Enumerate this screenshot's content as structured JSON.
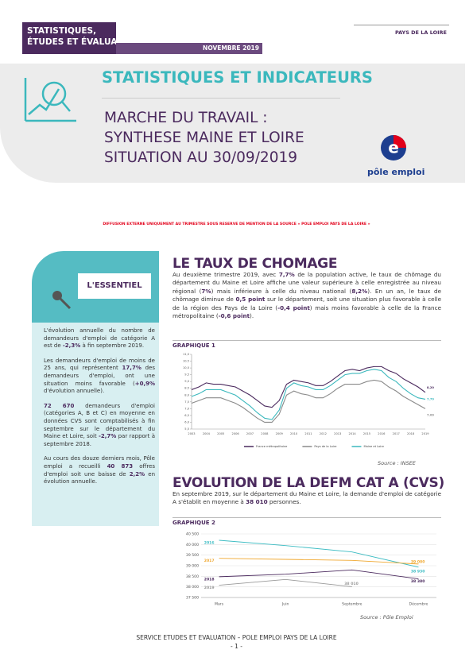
{
  "header": {
    "brand_line1": "STATISTIQUES,",
    "brand_line2": "ÉTUDES ET ÉVALUATIONS",
    "date": "NOVEMBRE 2019",
    "region": "PAYS DE LA LOIRE",
    "title": "STATISTIQUES ET INDICATEURS",
    "subtitle": [
      "MARCHE DU TRAVAIL :",
      "SYNTHESE MAINE ET LOIRE",
      "SITUATION AU 30/09/2019"
    ],
    "logo_text": "pôle emploi"
  },
  "notice": "DIFFUSION EXTERNE UNIQUEMENT AU TRIMESTRE SOUS RESERVE DE MENTION DE LA SOURCE « POLE EMPLOI PAYS DE LA LOIRE »",
  "sidebar": {
    "title": "L'ESSENTIEL",
    "paragraphs": [
      [
        {
          "text": "L'évolution annuelle du nombre de demandeurs d'emploi de catégorie A est de "
        },
        {
          "text": "-2,3%",
          "bold": true
        },
        {
          "text": " à fin septembre 2019."
        }
      ],
      [
        {
          "text": "Les demandeurs d'emploi de moins de 25 ans, qui représentent "
        },
        {
          "text": "17,7%",
          "bold": true
        },
        {
          "text": " des demandeurs d'emploi, ont une situation moins favorable ("
        },
        {
          "text": "+0,9%",
          "bold": true
        },
        {
          "text": " d'évolution annuelle)."
        }
      ],
      [
        {
          "text": "72 670",
          "bold": true
        },
        {
          "text": " demandeurs d'emploi (catégories A, B et C) en moyenne en données CVS sont comptabilisés à fin septembre sur le département du Maine et Loire, soit "
        },
        {
          "text": "-2,7%",
          "bold": true
        },
        {
          "text": " par rapport à septembre 2018."
        }
      ],
      [
        {
          "text": "Au cours des douze derniers mois, Pôle emploi a recueilli "
        },
        {
          "text": "40 873",
          "bold": true
        },
        {
          "text": " offres d'emploi soit une baisse de "
        },
        {
          "text": "2,2%",
          "bold": true
        },
        {
          "text": " en évolution annuelle."
        }
      ]
    ]
  },
  "sections": [
    {
      "title": "LE TAUX DE CHOMAGE",
      "paragraph": [
        {
          "text": "Au deuxième trimestre 2019, avec "
        },
        {
          "text": "7,7%",
          "bold": true
        },
        {
          "text": " de la population active, le taux de chômage du département du Maine et Loire affiche une valeur supérieure à celle enregistrée au niveau régional ("
        },
        {
          "text": "7%",
          "bold": true
        },
        {
          "text": ") mais inférieure à celle du niveau national ("
        },
        {
          "text": "8,2%",
          "bold": true
        },
        {
          "text": "). En un an, le taux de chômage diminue de "
        },
        {
          "text": "0,5 point",
          "bold": true
        },
        {
          "text": " sur le département, soit une situation plus favorable à celle de la région des Pays de la Loire ("
        },
        {
          "text": "-0,4 point",
          "bold": true
        },
        {
          "text": ") mais moins favorable à celle de la France métropolitaine ("
        },
        {
          "text": "-0,6 point",
          "bold": true
        },
        {
          "text": ")."
        }
      ],
      "chart_label": "GRAPHIQUE 1",
      "source": "Source : INSEE"
    },
    {
      "title": "EVOLUTION DE LA DEFM CAT A (CVS)",
      "paragraph": [
        {
          "text": "En septembre 2019, sur le département du Maine et Loire, la demande d'emploi de catégorie A s'établit en moyenne à "
        },
        {
          "text": "38 010",
          "bold": true
        },
        {
          "text": " personnes."
        }
      ],
      "chart_label": "GRAPHIQUE 2",
      "source": "Source : Pôle Emploi"
    }
  ],
  "chart_data": [
    {
      "type": "line",
      "legend": "bottom",
      "grid": false,
      "categories": [
        "2003",
        null,
        "2004",
        null,
        "2005",
        null,
        "2006",
        null,
        "2007",
        null,
        "2008",
        null,
        "2009",
        null,
        "2010",
        null,
        "2011",
        null,
        "2012",
        null,
        "2013",
        null,
        "2014",
        null,
        "2015",
        null,
        "2016",
        null,
        "2017",
        null,
        "2018",
        null,
        "2019"
      ],
      "ylim": [
        5.5,
        11
      ],
      "yticks": [
        {
          "value": 5.5,
          "label": "5,5"
        },
        {
          "value": 6,
          "label": "6,0"
        },
        {
          "value": 6.5,
          "label": "6,5"
        },
        {
          "value": 7,
          "label": "7,0"
        },
        {
          "value": 7.5,
          "label": "7,5"
        },
        {
          "value": 8,
          "label": "8,0"
        },
        {
          "value": 8.5,
          "label": "8,5"
        },
        {
          "value": 9,
          "label": "9,0"
        },
        {
          "value": 9.5,
          "label": "9,5"
        },
        {
          "value": 10,
          "label": "10,0"
        },
        {
          "value": 10.5,
          "label": "10,5"
        },
        {
          "value": 11,
          "label": "11,0"
        }
      ],
      "series": [
        {
          "name": "France métropolitaine",
          "color": "#4b2a5e",
          "values": [
            8.4,
            8.6,
            8.9,
            8.8,
            8.8,
            8.7,
            8.6,
            8.3,
            8.0,
            7.6,
            7.2,
            7.1,
            7.6,
            8.8,
            9.1,
            9.0,
            8.9,
            8.7,
            8.7,
            9.0,
            9.4,
            9.8,
            9.9,
            9.8,
            10.0,
            10.1,
            10.1,
            9.8,
            9.6,
            9.2,
            8.9,
            8.6,
            8.2
          ],
          "value_labels": [
            null,
            null,
            null,
            null,
            null,
            null,
            null,
            null,
            null,
            null,
            null,
            null,
            null,
            null,
            null,
            null,
            null,
            null,
            null,
            null,
            null,
            null,
            null,
            null,
            null,
            null,
            null,
            null,
            null,
            null,
            null,
            null,
            "8,20"
          ]
        },
        {
          "name": "Pays de la Loire",
          "color": "#8a8a8a",
          "values": [
            7.4,
            7.6,
            7.8,
            7.8,
            7.8,
            7.6,
            7.4,
            7.1,
            6.7,
            6.3,
            6.0,
            6.0,
            6.6,
            8.0,
            8.3,
            8.1,
            8.0,
            7.8,
            7.8,
            8.1,
            8.5,
            8.8,
            8.8,
            8.8,
            9.0,
            9.1,
            9.0,
            8.6,
            8.3,
            7.9,
            7.6,
            7.3,
            7.0
          ],
          "value_labels": [
            null,
            null,
            null,
            null,
            null,
            null,
            null,
            null,
            null,
            null,
            null,
            null,
            null,
            null,
            null,
            null,
            null,
            null,
            null,
            null,
            null,
            null,
            null,
            null,
            null,
            null,
            null,
            null,
            null,
            null,
            null,
            null,
            "7,00"
          ]
        },
        {
          "name": "Maine et Loire",
          "color": "#3bb8bd",
          "values": [
            7.9,
            8.1,
            8.4,
            8.4,
            8.4,
            8.2,
            8.0,
            7.6,
            7.2,
            6.7,
            6.3,
            6.2,
            6.9,
            8.5,
            8.9,
            8.7,
            8.6,
            8.4,
            8.4,
            8.7,
            9.1,
            9.5,
            9.6,
            9.6,
            9.8,
            9.9,
            9.8,
            9.3,
            9.0,
            8.5,
            8.1,
            7.8,
            7.7
          ],
          "value_labels": [
            null,
            null,
            null,
            null,
            null,
            null,
            null,
            null,
            null,
            null,
            null,
            null,
            null,
            null,
            null,
            null,
            null,
            null,
            null,
            null,
            null,
            null,
            null,
            null,
            null,
            null,
            null,
            null,
            null,
            null,
            null,
            null,
            "7,70"
          ]
        }
      ]
    },
    {
      "type": "line",
      "legend": "line-start",
      "grid": true,
      "categories": [
        "Mars",
        "Juin",
        "Septembre",
        "Décembre"
      ],
      "ylim": [
        37500,
        40500
      ],
      "yticks": [
        {
          "value": 37500,
          "label": "37 500"
        },
        {
          "value": 38000,
          "label": "38 000"
        },
        {
          "value": 38500,
          "label": "38 500"
        },
        {
          "value": 39000,
          "label": "39 000"
        },
        {
          "value": 39500,
          "label": "39 500"
        },
        {
          "value": 40000,
          "label": "40 000"
        },
        {
          "value": 40500,
          "label": "40 500"
        }
      ],
      "series": [
        {
          "name": "2016",
          "color": "#3cbcc3",
          "values": [
            40200,
            39950,
            39650,
            38930
          ],
          "value_labels": [
            null,
            null,
            null,
            "38 930"
          ]
        },
        {
          "name": "2017",
          "color": "#f0a830",
          "values": [
            39350,
            39300,
            39250,
            39080
          ],
          "value_labels": [
            null,
            null,
            null,
            "39 080"
          ]
        },
        {
          "name": "2018",
          "color": "#4b2a5e",
          "values": [
            38480,
            38600,
            38800,
            38380
          ],
          "value_labels": [
            null,
            null,
            null,
            "38 380"
          ]
        },
        {
          "name": "2019",
          "color": "#9a9a9a",
          "values": [
            38080,
            38350,
            38010,
            null
          ],
          "value_labels": [
            null,
            null,
            "38 010",
            null
          ]
        }
      ]
    }
  ],
  "footer": {
    "service": "SERVICE ETUDES ET EVALUATION – POLE EMPLOI PAYS DE LA LOIRE",
    "page": "- 1 -"
  }
}
